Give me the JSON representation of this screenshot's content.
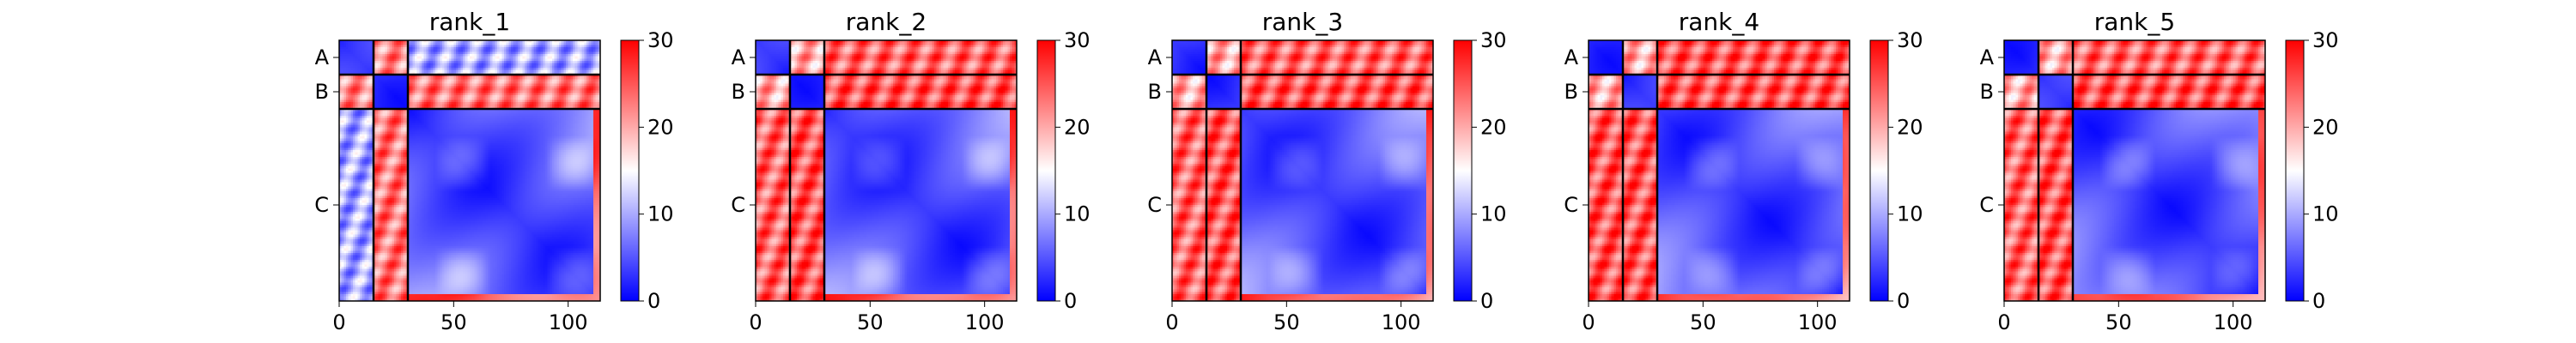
{
  "chart_data": [
    {
      "type": "heatmap",
      "title": "rank_1",
      "xlim": [
        0,
        114
      ],
      "x_ticks": [
        "0",
        "50",
        "100"
      ],
      "chains": [
        "A",
        "B",
        "C"
      ],
      "chain_boundaries": [
        0,
        15,
        30,
        114
      ],
      "colorbar": {
        "range": [
          0,
          30
        ],
        "ticks": [
          "0",
          "10",
          "20",
          "30"
        ],
        "colors": [
          "#0000ff",
          "#ffffff",
          "#ff0000"
        ]
      },
      "inter_chain_mean": {
        "AB": 22,
        "AC": 10,
        "BC": 23
      }
    },
    {
      "type": "heatmap",
      "title": "rank_2",
      "xlim": [
        0,
        114
      ],
      "x_ticks": [
        "0",
        "50",
        "100"
      ],
      "chains": [
        "A",
        "B",
        "C"
      ],
      "chain_boundaries": [
        0,
        15,
        30,
        114
      ],
      "colorbar": {
        "range": [
          0,
          30
        ],
        "ticks": [
          "0",
          "10",
          "20",
          "30"
        ],
        "colors": [
          "#0000ff",
          "#ffffff",
          "#ff0000"
        ]
      },
      "inter_chain_mean": {
        "AB": 20,
        "AC": 24,
        "BC": 25
      }
    },
    {
      "type": "heatmap",
      "title": "rank_3",
      "xlim": [
        0,
        114
      ],
      "x_ticks": [
        "0",
        "50",
        "100"
      ],
      "chains": [
        "A",
        "B",
        "C"
      ],
      "chain_boundaries": [
        0,
        15,
        30,
        114
      ],
      "colorbar": {
        "range": [
          0,
          30
        ],
        "ticks": [
          "0",
          "10",
          "20",
          "30"
        ],
        "colors": [
          "#0000ff",
          "#ffffff",
          "#ff0000"
        ]
      },
      "inter_chain_mean": {
        "AB": 20,
        "AC": 24,
        "BC": 25
      }
    },
    {
      "type": "heatmap",
      "title": "rank_4",
      "xlim": [
        0,
        114
      ],
      "x_ticks": [
        "0",
        "50",
        "100"
      ],
      "chains": [
        "A",
        "B",
        "C"
      ],
      "chain_boundaries": [
        0,
        15,
        30,
        114
      ],
      "colorbar": {
        "range": [
          0,
          30
        ],
        "ticks": [
          "0",
          "10",
          "20",
          "30"
        ],
        "colors": [
          "#0000ff",
          "#ffffff",
          "#ff0000"
        ]
      },
      "inter_chain_mean": {
        "AB": 20,
        "AC": 25,
        "BC": 25
      }
    },
    {
      "type": "heatmap",
      "title": "rank_5",
      "xlim": [
        0,
        114
      ],
      "x_ticks": [
        "0",
        "50",
        "100"
      ],
      "chains": [
        "A",
        "B",
        "C"
      ],
      "chain_boundaries": [
        0,
        15,
        30,
        114
      ],
      "colorbar": {
        "range": [
          0,
          30
        ],
        "ticks": [
          "0",
          "10",
          "20",
          "30"
        ],
        "colors": [
          "#0000ff",
          "#ffffff",
          "#ff0000"
        ]
      },
      "inter_chain_mean": {
        "AB": 20,
        "AC": 24,
        "BC": 25
      }
    }
  ]
}
